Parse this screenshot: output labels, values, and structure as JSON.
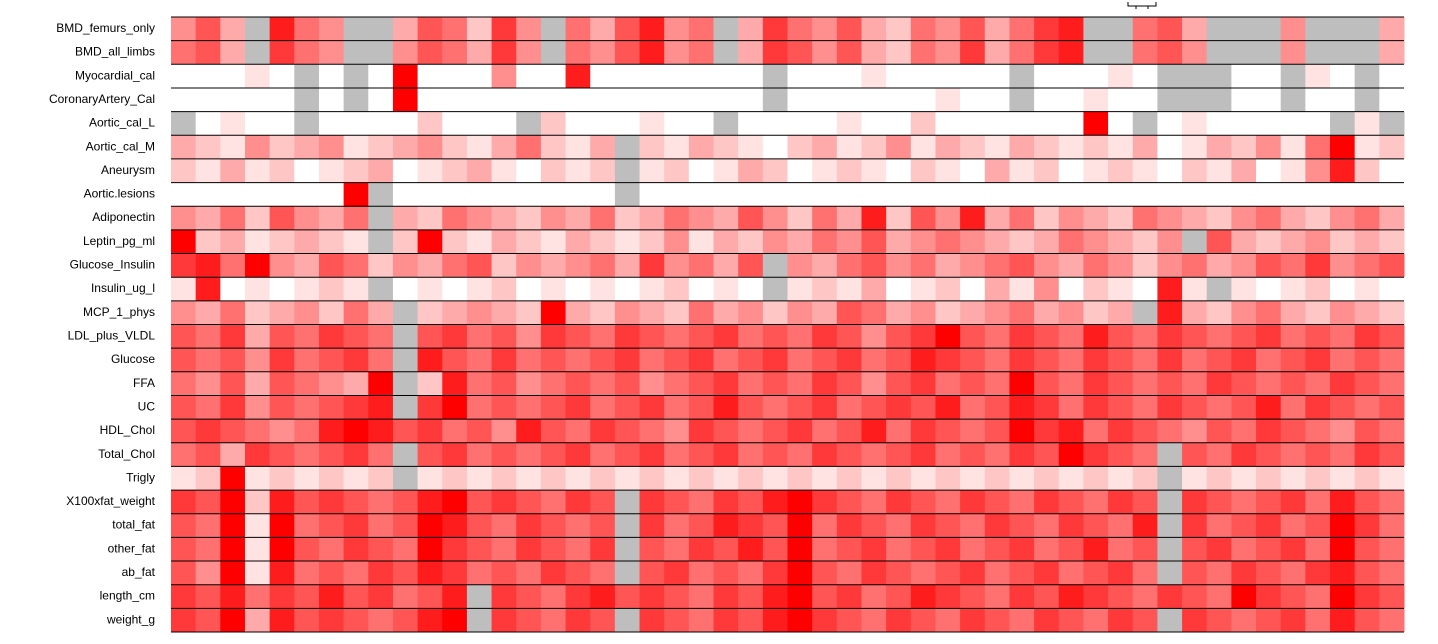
{
  "chart_data": {
    "type": "heatmap",
    "rows": [
      "BMD_femurs_only",
      "BMD_all_limbs",
      "Myocardial_cal",
      "CoronaryArtery_Cal",
      "Aortic_cal_L",
      "Aortic_cal_M",
      "Aneurysm",
      "Aortic.lesions",
      "Adiponectin",
      "Leptin_pg_ml",
      "Glucose_Insulin",
      "Insulin_ug_l",
      "MCP_1_phys",
      "LDL_plus_VLDL",
      "Glucose",
      "FFA",
      "UC",
      "HDL_Chol",
      "Total_Chol",
      "Trigly",
      "X100xfat_weight",
      "total_fat",
      "other_fat",
      "ab_fat",
      "length_cm",
      "weight_g"
    ],
    "values": [
      [
        4,
        6,
        3,
        null,
        8,
        5,
        4,
        null,
        null,
        3,
        6,
        5,
        2,
        7,
        4,
        null,
        5,
        3,
        6,
        8,
        4,
        5,
        null,
        3,
        7,
        5,
        4,
        6,
        3,
        2,
        5,
        4,
        6,
        3,
        5,
        7,
        8,
        null,
        null,
        5,
        6,
        3,
        null,
        null,
        null,
        4,
        null,
        null,
        null,
        3
      ],
      [
        5,
        6,
        3,
        null,
        7,
        5,
        4,
        null,
        null,
        4,
        6,
        5,
        3,
        7,
        4,
        null,
        5,
        4,
        6,
        8,
        4,
        5,
        null,
        3,
        7,
        6,
        4,
        6,
        3,
        2,
        5,
        4,
        7,
        3,
        5,
        7,
        8,
        null,
        null,
        5,
        6,
        4,
        null,
        null,
        null,
        4,
        null,
        null,
        null,
        3
      ],
      [
        0,
        0,
        0,
        1,
        0,
        null,
        0,
        null,
        0,
        9,
        0,
        0,
        0,
        4,
        0,
        0,
        8,
        0,
        0,
        0,
        0,
        0,
        0,
        0,
        null,
        0,
        0,
        0,
        1,
        0,
        0,
        0,
        0,
        0,
        null,
        0,
        0,
        0,
        1,
        0,
        null,
        null,
        null,
        0,
        0,
        null,
        1,
        0,
        null,
        0
      ],
      [
        0,
        0,
        0,
        0,
        0,
        null,
        0,
        null,
        0,
        9,
        0,
        0,
        0,
        0,
        0,
        0,
        0,
        0,
        0,
        0,
        0,
        0,
        0,
        0,
        null,
        0,
        0,
        0,
        0,
        0,
        0,
        1,
        0,
        0,
        null,
        0,
        0,
        1,
        0,
        0,
        null,
        null,
        null,
        0,
        0,
        null,
        0,
        0,
        null,
        0
      ],
      [
        null,
        0,
        1,
        0,
        0,
        null,
        0,
        0,
        0,
        0,
        2,
        0,
        0,
        0,
        null,
        2,
        0,
        0,
        0,
        1,
        0,
        0,
        null,
        0,
        0,
        0,
        0,
        1,
        0,
        0,
        2,
        0,
        0,
        0,
        0,
        0,
        0,
        9,
        0,
        null,
        0,
        1,
        0,
        0,
        0,
        0,
        0,
        null,
        1,
        null
      ],
      [
        3,
        2,
        1,
        4,
        2,
        3,
        4,
        1,
        2,
        3,
        4,
        2,
        1,
        3,
        5,
        2,
        1,
        3,
        null,
        2,
        1,
        3,
        2,
        1,
        0,
        2,
        3,
        1,
        2,
        4,
        1,
        3,
        2,
        1,
        3,
        2,
        1,
        2,
        1,
        3,
        0,
        1,
        3,
        2,
        4,
        1,
        5,
        9,
        1,
        2
      ],
      [
        2,
        1,
        3,
        1,
        2,
        0,
        1,
        2,
        3,
        0,
        1,
        2,
        3,
        1,
        0,
        2,
        1,
        2,
        null,
        1,
        2,
        0,
        1,
        3,
        2,
        0,
        1,
        2,
        1,
        0,
        2,
        1,
        0,
        3,
        1,
        2,
        0,
        1,
        2,
        1,
        0,
        2,
        1,
        3,
        0,
        1,
        4,
        8,
        2,
        0
      ],
      [
        0,
        0,
        0,
        0,
        0,
        0,
        0,
        9,
        null,
        0,
        0,
        0,
        0,
        0,
        0,
        0,
        0,
        0,
        null,
        0,
        0,
        0,
        0,
        0,
        0,
        0,
        0,
        0,
        0,
        0,
        0,
        0,
        0,
        0,
        0,
        0,
        0,
        0,
        0,
        0,
        0,
        0,
        0,
        0,
        0,
        0,
        0,
        0,
        0,
        0
      ],
      [
        4,
        3,
        5,
        2,
        6,
        4,
        3,
        5,
        null,
        3,
        2,
        5,
        4,
        3,
        2,
        4,
        3,
        5,
        2,
        3,
        5,
        4,
        3,
        6,
        4,
        2,
        5,
        3,
        8,
        2,
        6,
        4,
        8,
        3,
        5,
        2,
        4,
        3,
        2,
        5,
        4,
        3,
        2,
        4,
        5,
        3,
        2,
        4,
        5,
        3
      ],
      [
        9,
        2,
        3,
        1,
        2,
        3,
        2,
        1,
        null,
        2,
        9,
        2,
        1,
        3,
        2,
        1,
        3,
        2,
        1,
        2,
        4,
        1,
        3,
        2,
        4,
        3,
        5,
        4,
        6,
        3,
        4,
        5,
        4,
        3,
        2,
        3,
        5,
        4,
        3,
        2,
        4,
        null,
        6,
        3,
        2,
        3,
        4,
        2,
        3,
        2
      ],
      [
        7,
        8,
        5,
        9,
        4,
        3,
        6,
        5,
        2,
        4,
        3,
        5,
        6,
        2,
        4,
        3,
        4,
        5,
        3,
        7,
        4,
        5,
        3,
        6,
        null,
        4,
        3,
        5,
        6,
        4,
        5,
        3,
        4,
        5,
        6,
        4,
        3,
        5,
        4,
        2,
        4,
        5,
        3,
        4,
        6,
        5,
        7,
        4,
        5,
        6
      ],
      [
        1,
        8,
        0,
        1,
        0,
        1,
        2,
        1,
        null,
        0,
        1,
        0,
        1,
        2,
        0,
        1,
        0,
        1,
        0,
        1,
        2,
        0,
        1,
        0,
        null,
        1,
        2,
        1,
        3,
        0,
        1,
        2,
        0,
        3,
        1,
        4,
        0,
        2,
        1,
        0,
        8,
        1,
        null,
        1,
        0,
        1,
        2,
        0,
        1,
        0
      ],
      [
        4,
        3,
        5,
        2,
        3,
        4,
        2,
        5,
        3,
        null,
        2,
        3,
        4,
        3,
        2,
        9,
        3,
        2,
        4,
        3,
        2,
        5,
        3,
        4,
        2,
        4,
        3,
        6,
        5,
        3,
        4,
        2,
        3,
        4,
        5,
        3,
        4,
        2,
        3,
        null,
        8,
        3,
        2,
        4,
        5,
        3,
        2,
        4,
        3,
        2
      ],
      [
        6,
        5,
        7,
        3,
        6,
        5,
        7,
        6,
        5,
        null,
        6,
        7,
        5,
        6,
        4,
        7,
        6,
        5,
        7,
        6,
        5,
        6,
        7,
        5,
        6,
        5,
        7,
        6,
        4,
        6,
        7,
        9,
        6,
        5,
        7,
        6,
        5,
        8,
        6,
        5,
        7,
        6,
        5,
        6,
        7,
        5,
        6,
        5,
        7,
        6
      ],
      [
        6,
        5,
        6,
        4,
        7,
        5,
        6,
        7,
        5,
        null,
        8,
        6,
        5,
        7,
        5,
        6,
        5,
        6,
        7,
        5,
        6,
        7,
        5,
        6,
        7,
        5,
        6,
        7,
        5,
        6,
        8,
        7,
        6,
        5,
        7,
        6,
        5,
        7,
        6,
        5,
        7,
        5,
        6,
        7,
        5,
        6,
        7,
        5,
        6,
        5
      ],
      [
        5,
        4,
        6,
        3,
        6,
        5,
        4,
        3,
        9,
        null,
        2,
        8,
        5,
        6,
        4,
        5,
        6,
        5,
        6,
        4,
        5,
        6,
        7,
        5,
        6,
        5,
        7,
        6,
        4,
        6,
        7,
        5,
        6,
        5,
        9,
        6,
        5,
        7,
        6,
        5,
        6,
        5,
        7,
        6,
        5,
        6,
        5,
        7,
        6,
        5
      ],
      [
        6,
        5,
        7,
        4,
        6,
        5,
        6,
        7,
        8,
        null,
        7,
        9,
        5,
        6,
        5,
        6,
        7,
        5,
        6,
        7,
        5,
        6,
        8,
        6,
        5,
        6,
        7,
        5,
        6,
        7,
        6,
        8,
        5,
        6,
        8,
        7,
        5,
        7,
        6,
        5,
        7,
        6,
        5,
        6,
        8,
        5,
        7,
        6,
        5,
        6
      ],
      [
        6,
        7,
        6,
        5,
        4,
        5,
        8,
        9,
        8,
        6,
        7,
        5,
        6,
        4,
        8,
        6,
        5,
        7,
        6,
        5,
        4,
        7,
        6,
        5,
        6,
        7,
        5,
        6,
        8,
        5,
        7,
        6,
        5,
        6,
        9,
        7,
        8,
        5,
        7,
        6,
        5,
        4,
        6,
        5,
        7,
        6,
        5,
        4,
        6,
        5
      ],
      [
        5,
        6,
        3,
        7,
        6,
        5,
        6,
        7,
        5,
        null,
        6,
        7,
        5,
        6,
        5,
        6,
        7,
        5,
        6,
        7,
        5,
        6,
        7,
        5,
        6,
        5,
        7,
        6,
        5,
        6,
        7,
        5,
        6,
        5,
        7,
        6,
        9,
        7,
        6,
        5,
        null,
        6,
        5,
        7,
        6,
        5,
        6,
        5,
        7,
        6
      ],
      [
        1,
        2,
        9,
        1,
        2,
        1,
        2,
        1,
        2,
        null,
        1,
        2,
        1,
        2,
        1,
        2,
        1,
        2,
        1,
        2,
        1,
        2,
        1,
        2,
        1,
        2,
        1,
        2,
        1,
        2,
        1,
        2,
        1,
        2,
        1,
        2,
        1,
        2,
        1,
        2,
        null,
        1,
        2,
        1,
        2,
        1,
        2,
        1,
        2,
        1
      ],
      [
        7,
        6,
        9,
        2,
        8,
        6,
        7,
        6,
        5,
        6,
        8,
        9,
        6,
        7,
        6,
        5,
        7,
        6,
        null,
        7,
        6,
        5,
        7,
        6,
        8,
        9,
        7,
        6,
        5,
        7,
        6,
        5,
        7,
        6,
        5,
        7,
        6,
        5,
        7,
        6,
        null,
        7,
        6,
        5,
        6,
        7,
        5,
        8,
        6,
        5
      ],
      [
        6,
        5,
        9,
        1,
        9,
        5,
        6,
        7,
        5,
        6,
        9,
        8,
        6,
        5,
        7,
        6,
        5,
        6,
        null,
        7,
        5,
        6,
        8,
        7,
        6,
        9,
        5,
        7,
        6,
        5,
        7,
        6,
        5,
        7,
        6,
        5,
        7,
        6,
        5,
        8,
        null,
        7,
        5,
        6,
        7,
        5,
        6,
        9,
        7,
        5
      ],
      [
        6,
        5,
        9,
        1,
        9,
        6,
        5,
        7,
        6,
        5,
        9,
        7,
        6,
        5,
        7,
        6,
        5,
        7,
        null,
        6,
        5,
        7,
        6,
        8,
        6,
        9,
        5,
        6,
        7,
        5,
        6,
        7,
        5,
        6,
        7,
        5,
        6,
        8,
        5,
        6,
        null,
        6,
        7,
        5,
        6,
        7,
        5,
        9,
        6,
        5
      ],
      [
        6,
        4,
        9,
        1,
        8,
        5,
        6,
        5,
        7,
        6,
        8,
        7,
        5,
        6,
        5,
        7,
        6,
        5,
        null,
        6,
        7,
        5,
        6,
        5,
        7,
        9,
        6,
        5,
        7,
        6,
        5,
        6,
        7,
        5,
        6,
        7,
        5,
        6,
        7,
        5,
        null,
        6,
        5,
        7,
        6,
        5,
        7,
        8,
        6,
        5
      ],
      [
        7,
        6,
        8,
        5,
        7,
        6,
        8,
        6,
        7,
        5,
        6,
        8,
        null,
        7,
        6,
        5,
        7,
        8,
        6,
        7,
        6,
        5,
        7,
        6,
        8,
        9,
        6,
        7,
        5,
        6,
        8,
        7,
        6,
        5,
        7,
        6,
        8,
        7,
        6,
        5,
        7,
        6,
        5,
        9,
        7,
        6,
        5,
        9,
        7,
        6
      ],
      [
        7,
        6,
        9,
        3,
        8,
        6,
        7,
        6,
        5,
        6,
        8,
        9,
        null,
        7,
        6,
        5,
        7,
        6,
        null,
        7,
        6,
        5,
        7,
        6,
        8,
        9,
        7,
        6,
        5,
        7,
        6,
        5,
        7,
        6,
        5,
        7,
        6,
        5,
        7,
        6,
        null,
        7,
        6,
        5,
        6,
        7,
        5,
        8,
        6,
        5
      ]
    ],
    "zlim": [
      0,
      9
    ],
    "low_color": "#ffffff",
    "high_color": "#ff0000",
    "missing_color": "#bebebe"
  }
}
